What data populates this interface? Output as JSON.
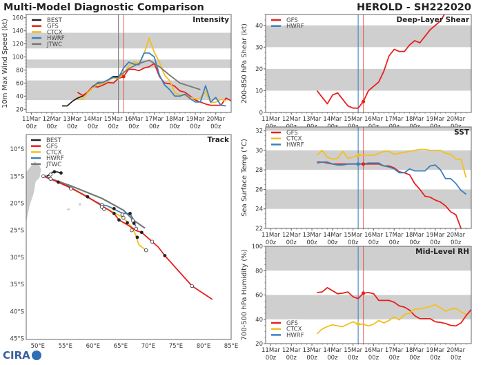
{
  "header": {
    "title": "Multi-Model Diagnostic Comparison",
    "storm": "HEROLD - SH222020"
  },
  "logo": {
    "text": "CIRA"
  },
  "colors": {
    "BEST": "#222222",
    "GFS": "#e8201c",
    "CTCX": "#f2c01e",
    "HWRF": "#3b7fbf",
    "JTWC": "#777777",
    "band": "#cfcfcf",
    "land": "#cccccc"
  },
  "chart_data": [
    {
      "type": "line",
      "title": "Intensity",
      "ylabel": "10m Max Wind Speed (kt)",
      "xlim": [
        "2020-03-10T18Z",
        "2020-03-20T18Z"
      ],
      "ylim": [
        15,
        165
      ],
      "yticks": [
        20,
        40,
        60,
        80,
        100,
        120,
        140,
        160
      ],
      "xticks": [
        {
          "t": "2020-03-11T00Z",
          "l1": "11Mar",
          "l2": "00z"
        },
        {
          "t": "2020-03-12T00Z",
          "l1": "12Mar",
          "l2": "00z"
        },
        {
          "t": "2020-03-13T00Z",
          "l1": "13Mar",
          "l2": "00z"
        },
        {
          "t": "2020-03-14T00Z",
          "l1": "14Mar",
          "l2": "00z"
        },
        {
          "t": "2020-03-15T00Z",
          "l1": "15Mar",
          "l2": "00z"
        },
        {
          "t": "2020-03-16T00Z",
          "l1": "16Mar",
          "l2": "00z"
        },
        {
          "t": "2020-03-17T00Z",
          "l1": "17Mar",
          "l2": "00z"
        },
        {
          "t": "2020-03-18T00Z",
          "l1": "18Mar",
          "l2": "00z"
        },
        {
          "t": "2020-03-19T00Z",
          "l1": "19Mar",
          "l2": "00z"
        },
        {
          "t": "2020-03-20T00Z",
          "l1": "20Mar",
          "l2": "00z"
        }
      ],
      "bands": [
        [
          34,
          64
        ],
        [
          83,
          96
        ],
        [
          113,
          137
        ]
      ],
      "vlines": [
        {
          "t": "2020-03-15T06Z",
          "color": "#777777"
        },
        {
          "t": "2020-03-15T12Z",
          "color": "#e8201c"
        }
      ],
      "legend": [
        "BEST",
        "GFS",
        "CTCX",
        "HWRF",
        "JTWC"
      ],
      "legend_position": "top-left",
      "series": [
        {
          "name": "BEST",
          "start": "2020-03-12T12Z",
          "step_hours": 6,
          "values": [
            25,
            25,
            32,
            37,
            40,
            46,
            55,
            60,
            61,
            65,
            70,
            70
          ]
        },
        {
          "name": "GFS",
          "start": "2020-03-13T06Z",
          "step_hours": 6,
          "values": [
            46,
            41,
            46,
            55,
            54,
            57,
            61,
            60,
            67,
            70,
            81,
            81,
            79,
            83,
            85,
            90,
            70,
            60,
            59,
            55,
            48,
            46,
            40,
            34,
            31,
            28,
            26,
            26,
            26,
            37,
            33,
            31
          ]
        },
        {
          "name": "CTCX",
          "start": "2020-03-13T06Z",
          "step_hours": 6,
          "values": [
            35,
            35,
            45,
            53,
            58,
            59,
            64,
            68,
            67,
            75,
            86,
            93,
            90,
            105,
            129,
            107,
            92,
            72,
            64,
            45,
            42,
            41,
            38,
            36,
            37,
            47,
            30,
            31,
            35,
            33
          ]
        },
        {
          "name": "HWRF",
          "start": "2020-03-14T00Z",
          "step_hours": 6,
          "values": [
            54,
            61,
            61,
            65,
            69,
            68,
            83,
            92,
            89,
            88,
            106,
            106,
            100,
            72,
            57,
            50,
            40,
            40,
            43,
            36,
            31,
            31,
            56,
            31,
            38,
            26,
            25
          ]
        },
        {
          "name": "JTWC",
          "start": "2020-03-15T06Z",
          "step_hours": 12,
          "values": [
            70,
            82,
            90,
            95,
            85,
            72,
            60,
            55,
            50
          ]
        }
      ],
      "markers": [
        {
          "name": "GFS",
          "t": "2020-03-15T12Z",
          "v": 70
        }
      ]
    },
    {
      "type": "line",
      "title": "Deep-Layer Shear",
      "ylabel": "200-850 hPa Shear (kt)",
      "xlim": [
        "2020-03-10T18Z",
        "2020-03-20T18Z"
      ],
      "ylim": [
        0,
        45
      ],
      "yticks": [
        0,
        10,
        20,
        30,
        40
      ],
      "bands": [
        [
          10,
          20
        ],
        [
          30,
          40
        ]
      ],
      "vlines": [
        {
          "t": "2020-03-15T06Z",
          "color": "#3b7fbf"
        },
        {
          "t": "2020-03-15T12Z",
          "color": "#e8201c"
        }
      ],
      "legend": [
        "GFS",
        "HWRF"
      ],
      "legend_position": "top-left",
      "series": [
        {
          "name": "GFS",
          "start": "2020-03-13T06Z",
          "step_hours": 6,
          "values": [
            10,
            7,
            4,
            8,
            9,
            6,
            3,
            2,
            2,
            5,
            10,
            12,
            14,
            19,
            26,
            29,
            28,
            28,
            31,
            33,
            32,
            35,
            38,
            40,
            42,
            46,
            50,
            52,
            52,
            50,
            46,
            35
          ]
        }
      ],
      "markers": [
        {
          "name": "GFS",
          "t": "2020-03-15T12Z",
          "v": 5
        }
      ]
    },
    {
      "type": "line",
      "title": "SST",
      "ylabel": "Sea Surface Temp (°C)",
      "xlim": [
        "2020-03-10T18Z",
        "2020-03-20T18Z"
      ],
      "ylim": [
        22,
        32.4
      ],
      "yticks": [
        22,
        24,
        26,
        28,
        30,
        32
      ],
      "bands": [
        [
          24,
          26
        ],
        [
          28,
          30
        ],
        [
          32,
          33
        ]
      ],
      "vlines": [
        {
          "t": "2020-03-15T06Z",
          "color": "#3b7fbf"
        },
        {
          "t": "2020-03-15T12Z",
          "color": "#e8201c"
        }
      ],
      "legend": [
        "GFS",
        "CTCX",
        "HWRF"
      ],
      "legend_position": "top-left",
      "series": [
        {
          "name": "GFS",
          "start": "2020-03-13T06Z",
          "step_hours": 6,
          "values": [
            28.8,
            28.8,
            28.7,
            28.6,
            28.6,
            28.6,
            28.6,
            28.6,
            28.6,
            28.6,
            28.6,
            28.6,
            28.6,
            28.4,
            28.4,
            28.2,
            27.8,
            27.7,
            27.5,
            26.6,
            26.0,
            25.3,
            25.2,
            24.9,
            24.7,
            24.3,
            23.7,
            23.4,
            22.0,
            20.8
          ]
        },
        {
          "name": "CTCX",
          "start": "2020-03-13T06Z",
          "step_hours": 6,
          "values": [
            29.5,
            30.0,
            29.3,
            29.1,
            29.2,
            29.9,
            29.2,
            29.3,
            29.5,
            29.5,
            29.5,
            29.5,
            29.7,
            29.9,
            29.9,
            29.6,
            29.7,
            29.8,
            29.9,
            30.0,
            30.1,
            30.1,
            30.0,
            30.0,
            30.0,
            29.7,
            29.6,
            29.1,
            29.1,
            27.2
          ]
        },
        {
          "name": "HWRF",
          "start": "2020-03-13T06Z",
          "step_hours": 6,
          "values": [
            28.7,
            28.8,
            28.8,
            28.6,
            28.5,
            28.5,
            28.6,
            28.6,
            28.6,
            28.6,
            28.7,
            28.7,
            28.7,
            28.4,
            28.3,
            28.1,
            27.7,
            27.7,
            28.1,
            27.9,
            27.9,
            27.9,
            28.4,
            28.5,
            28.0,
            27.1,
            27.1,
            26.6,
            25.9,
            25.5
          ]
        }
      ],
      "markers": [
        {
          "name": "CTCX",
          "t": "2020-03-15T06Z",
          "v": 29.5
        },
        {
          "name": "HWRF",
          "t": "2020-03-15T06Z",
          "v": 28.6
        },
        {
          "name": "GFS",
          "t": "2020-03-15T12Z",
          "v": 28.6
        }
      ]
    },
    {
      "type": "line",
      "title": "Mid-Level RH",
      "ylabel": "700-500 hPa Humidity (%)",
      "xlim": [
        "2020-03-10T18Z",
        "2020-03-20T18Z"
      ],
      "ylim": [
        20,
        100
      ],
      "yticks": [
        20,
        40,
        60,
        80,
        100
      ],
      "bands": [
        [
          40,
          60
        ],
        [
          80,
          100
        ]
      ],
      "vlines": [
        {
          "t": "2020-03-15T06Z",
          "color": "#3b7fbf"
        },
        {
          "t": "2020-03-15T12Z",
          "color": "#e8201c"
        }
      ],
      "legend": [
        "GFS",
        "CTCX",
        "HWRF"
      ],
      "legend_position": "bottom-left",
      "series": [
        {
          "name": "GFS",
          "start": "2020-03-13T06Z",
          "step_hours": 6,
          "values": [
            62,
            62.5,
            66,
            63.5,
            61,
            61.5,
            62.5,
            58.5,
            57,
            61.5,
            62,
            61,
            55.5,
            55.5,
            55.5,
            54,
            51,
            50,
            47.5,
            43,
            40.5,
            40.5,
            40.5,
            38,
            37.5,
            36.5,
            35,
            34.5,
            37,
            43,
            48,
            53
          ]
        },
        {
          "name": "CTCX",
          "start": "2020-03-13T06Z",
          "step_hours": 6,
          "values": [
            28,
            32,
            34,
            35.5,
            34.5,
            34,
            36,
            38,
            36,
            36,
            34.5,
            36,
            39,
            37,
            39,
            42,
            39.5,
            44,
            45,
            48.5,
            48.5,
            49.5,
            50.5,
            52,
            49.5,
            46.5,
            48.5,
            49,
            46,
            44
          ]
        }
      ],
      "markers": [
        {
          "name": "CTCX",
          "t": "2020-03-15T06Z",
          "v": 36
        },
        {
          "name": "GFS",
          "t": "2020-03-15T12Z",
          "v": 61.5
        }
      ]
    },
    {
      "type": "map-track",
      "title": "Track",
      "lon_range": [
        47.9,
        85
      ],
      "lat_range": [
        -45.2,
        -7.3
      ],
      "lon_ticks": [
        {
          "v": 50,
          "l": "50°E"
        },
        {
          "v": 55,
          "l": "55°E"
        },
        {
          "v": 60,
          "l": "60°E"
        },
        {
          "v": 65,
          "l": "65°E"
        },
        {
          "v": 70,
          "l": "70°E"
        },
        {
          "v": 75,
          "l": "75°E"
        },
        {
          "v": 80,
          "l": "80°E"
        },
        {
          "v": 85,
          "l": "85°E"
        }
      ],
      "lat_ticks": [
        {
          "v": -10,
          "l": "10°S"
        },
        {
          "v": -15,
          "l": "15°S"
        },
        {
          "v": -20,
          "l": "20°S"
        },
        {
          "v": -25,
          "l": "25°S"
        },
        {
          "v": -30,
          "l": "30°S"
        },
        {
          "v": -35,
          "l": "35°S"
        },
        {
          "v": -40,
          "l": "40°S"
        },
        {
          "v": -45,
          "l": "45°S"
        }
      ],
      "legend": [
        "BEST",
        "GFS",
        "CTCX",
        "HWRF",
        "JTWC"
      ],
      "legend_position": "top-left",
      "land": [
        [
          [
            47.9,
            -23.5
          ],
          [
            48.5,
            -20.5
          ],
          [
            49.3,
            -18
          ],
          [
            49.6,
            -16
          ],
          [
            50.3,
            -15.3
          ],
          [
            50.6,
            -13.8
          ],
          [
            50.2,
            -12.8
          ],
          [
            49.4,
            -12.3
          ],
          [
            48.5,
            -13.5
          ],
          [
            47.9,
            -14.2
          ]
        ],
        [
          [
            55.3,
            -21.0
          ],
          [
            55.8,
            -21.0
          ],
          [
            55.8,
            -21.3
          ],
          [
            55.3,
            -21.3
          ]
        ],
        [
          [
            57.4,
            -20.0
          ],
          [
            57.8,
            -20.0
          ],
          [
            57.8,
            -20.4
          ],
          [
            57.4,
            -20.4
          ]
        ]
      ],
      "tracks": [
        {
          "name": "BEST",
          "points": [
            [
              51.3,
              -15.2
            ],
            [
              52.3,
              -14.6
            ],
            [
              52.8,
              -14.2
            ],
            [
              53.5,
              -14.2
            ],
            [
              54.2,
              -14.4
            ]
          ]
        },
        {
          "name": "JTWC",
          "points": [
            [
              51,
              -15
            ],
            [
              56,
              -16.8
            ],
            [
              61.6,
              -19.1
            ],
            [
              65.5,
              -21.3
            ],
            [
              67.4,
              -23.2
            ],
            [
              69.4,
              -24.6
            ]
          ]
        },
        {
          "name": "CTCX",
          "points": [
            [
              51,
              -15
            ],
            [
              52.3,
              -15.5
            ],
            [
              56,
              -17.2
            ],
            [
              59,
              -18.9
            ],
            [
              61.6,
              -20.5
            ],
            [
              65.5,
              -22.7
            ],
            [
              67.1,
              -24.5
            ],
            [
              67.7,
              -25.8
            ],
            [
              68.3,
              -27.7
            ],
            [
              69.6,
              -28.7
            ]
          ]
        },
        {
          "name": "HWRF",
          "points": [
            [
              51.2,
              -14.9
            ],
            [
              52,
              -15.3
            ],
            [
              56,
              -17.1
            ],
            [
              59,
              -18.9
            ],
            [
              61.6,
              -20.3
            ],
            [
              62.6,
              -20.5
            ],
            [
              65.4,
              -21.9
            ],
            [
              66.7,
              -21.9
            ],
            [
              67.3,
              -23
            ],
            [
              67.7,
              -24.3
            ]
          ]
        },
        {
          "name": "GFS",
          "points": [
            [
              51,
              -15
            ],
            [
              53.7,
              -16.1
            ],
            [
              56,
              -17.2
            ],
            [
              59,
              -18.8
            ],
            [
              61.6,
              -20.5
            ],
            [
              63.8,
              -21.9
            ],
            [
              64.7,
              -23.1
            ],
            [
              66.4,
              -24.1
            ],
            [
              67.9,
              -25.1
            ],
            [
              68.8,
              -25.4
            ],
            [
              70.7,
              -27.1
            ],
            [
              71.8,
              -28.1
            ],
            [
              73,
              -29.7
            ],
            [
              77.9,
              -35.3
            ],
            [
              81.6,
              -37.8
            ]
          ]
        }
      ],
      "filled_markers": [
        [
          53.7,
          -16.1
        ],
        [
          59,
          -18.8
        ],
        [
          63.8,
          -21.0
        ],
        [
          63.8,
          -21.9
        ],
        [
          64.7,
          -23.1
        ],
        [
          66.2,
          -23.6
        ],
        [
          66.7,
          -21.9
        ],
        [
          67.4,
          -23.7
        ],
        [
          68.8,
          -25.4
        ],
        [
          68,
          -26.3
        ],
        [
          73,
          -29.7
        ],
        [
          53,
          -14.2
        ],
        [
          54.2,
          -14.4
        ]
      ],
      "open_markers": [
        [
          51,
          -15
        ],
        [
          52.3,
          -14.7
        ],
        [
          52.3,
          -15.5
        ],
        [
          56,
          -17.3
        ],
        [
          61.6,
          -20.3
        ],
        [
          61.6,
          -20.7
        ],
        [
          62,
          -21.1
        ],
        [
          65.3,
          -22.1
        ],
        [
          65.5,
          -22.7
        ],
        [
          67,
          -25
        ],
        [
          67.8,
          -24.7
        ],
        [
          67.2,
          -23.2
        ],
        [
          69.6,
          -28.7
        ],
        [
          70.7,
          -27.1
        ],
        [
          77.9,
          -35.3
        ]
      ]
    }
  ]
}
